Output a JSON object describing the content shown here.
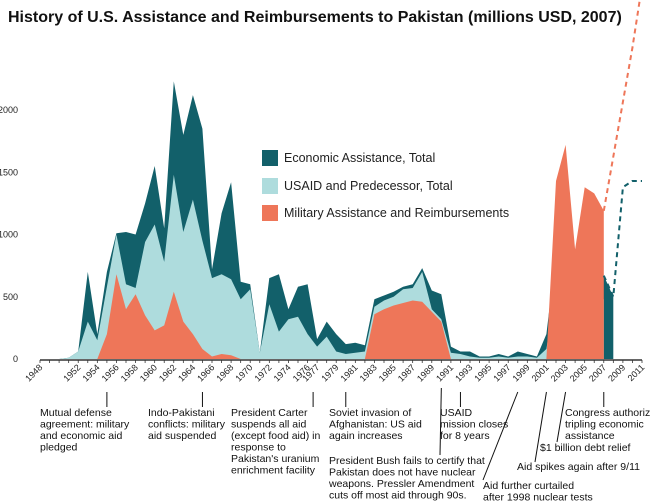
{
  "chart_data": {
    "type": "area",
    "title": "History of U.S. Assistance and Reimbursements to Pakistan (millions USD, 2007)",
    "xlabel": "",
    "ylabel": "",
    "xlim": [
      1948,
      2011
    ],
    "ylim": [
      0,
      2000
    ],
    "yticks": [
      "0",
      "500",
      "1000",
      "1500",
      "2000"
    ],
    "yticks_values": [
      0,
      500,
      1000,
      1500,
      2000
    ],
    "xtick_labels": [
      "1948",
      "1952",
      "1954",
      "1956",
      "1958",
      "1960",
      "1962",
      "1964",
      "1966",
      "1968",
      "1970",
      "1972",
      "1974",
      "1976",
      "1977",
      "1979",
      "1981",
      "1983",
      "1985",
      "1987",
      "1989",
      "1991",
      "1993",
      "1995",
      "1997",
      "1999",
      "2001",
      "2003",
      "2005",
      "2007",
      "2009",
      "2011"
    ],
    "legend_position": "center-right",
    "series": [
      {
        "name": "Economic Assistance, Total",
        "color": "#12606a",
        "x": [
          1948,
          1950,
          1951,
          1952,
          1953,
          1954,
          1955,
          1956,
          1957,
          1958,
          1959,
          1960,
          1961,
          1962,
          1963,
          1964,
          1965,
          1966,
          1967,
          1968,
          1969,
          1970,
          1971,
          1972,
          1973,
          1974,
          1975,
          1976,
          1977,
          1978,
          1979,
          1980,
          1981,
          1982,
          1983,
          1984,
          1985,
          1986,
          1987,
          1988,
          1989,
          1990,
          1991,
          1992,
          1993,
          1994,
          1995,
          1996,
          1997,
          1998,
          1999,
          2000,
          2001,
          2002,
          2003,
          2004,
          2005,
          2006,
          2007,
          2008
        ],
        "values": [
          0,
          0,
          10,
          60,
          700,
          200,
          700,
          1010,
          1020,
          1000,
          1250,
          1550,
          1050,
          2230,
          1800,
          2120,
          1850,
          720,
          1170,
          1420,
          620,
          600,
          50,
          650,
          680,
          400,
          580,
          600,
          160,
          300,
          200,
          120,
          130,
          110,
          480,
          510,
          540,
          580,
          600,
          730,
          550,
          520,
          100,
          60,
          60,
          20,
          20,
          40,
          20,
          60,
          40,
          20,
          200,
          850,
          320,
          360,
          420,
          660,
          670,
          500
        ]
      },
      {
        "name": "USAID and Predecessor, Total",
        "color": "#aedcdd",
        "x": [
          1948,
          1950,
          1951,
          1952,
          1953,
          1954,
          1955,
          1956,
          1957,
          1958,
          1959,
          1960,
          1961,
          1962,
          1963,
          1964,
          1965,
          1966,
          1967,
          1968,
          1969,
          1970,
          1971,
          1972,
          1973,
          1974,
          1975,
          1976,
          1977,
          1978,
          1979,
          1980,
          1981,
          1982,
          1983,
          1984,
          1985,
          1986,
          1987,
          1988,
          1989,
          1990,
          1991,
          1992,
          1993,
          1994,
          1995,
          1996,
          1997,
          1998,
          1999,
          2000,
          2001,
          2002,
          2003,
          2004,
          2005,
          2006,
          2007
        ],
        "values": [
          0,
          0,
          10,
          60,
          300,
          150,
          580,
          1000,
          600,
          570,
          940,
          1080,
          780,
          1480,
          1020,
          1280,
          950,
          650,
          680,
          640,
          480,
          560,
          50,
          440,
          220,
          320,
          340,
          200,
          100,
          180,
          60,
          40,
          50,
          60,
          420,
          470,
          500,
          560,
          570,
          700,
          400,
          320,
          50,
          40,
          20,
          10,
          10,
          20,
          10,
          20,
          20,
          10,
          80,
          580,
          290,
          310,
          380,
          460,
          480
        ]
      },
      {
        "name": "Military Assistance and Reimbursements",
        "color": "#ee7659",
        "x": [
          1948,
          1954,
          1955,
          1956,
          1957,
          1958,
          1959,
          1960,
          1961,
          1962,
          1963,
          1964,
          1965,
          1966,
          1967,
          1968,
          1969,
          1979,
          1982,
          1983,
          1984,
          1985,
          1986,
          1987,
          1988,
          1989,
          1990,
          1991,
          2000,
          2001,
          2002,
          2003,
          2004,
          2005,
          2006,
          2007
        ],
        "values": [
          0,
          0,
          200,
          680,
          400,
          520,
          350,
          230,
          270,
          540,
          300,
          200,
          80,
          20,
          40,
          30,
          0,
          0,
          0,
          360,
          400,
          430,
          450,
          470,
          460,
          380,
          300,
          0,
          0,
          0,
          1430,
          1720,
          880,
          1380,
          1330,
          1190
        ]
      }
    ],
    "projections": [
      {
        "name": "Economic Assistance projection",
        "x": [
          2007,
          2008,
          2009,
          2010,
          2011
        ],
        "values": [
          670,
          500,
          1380,
          1430,
          1430
        ],
        "color": "#12606a",
        "style": "dashed"
      },
      {
        "name": "Military Assistance projection",
        "x": [
          2007,
          2010,
          2011
        ],
        "values": [
          1190,
          2500,
          3000
        ],
        "color": "#ee7659",
        "style": "dashed"
      }
    ],
    "annotations": [
      {
        "year": 1955,
        "lines": [
          "Mutual defense",
          "agreement: military",
          "and economic aid",
          "pledged"
        ]
      },
      {
        "year": 1965,
        "lines": [
          "Indo-Pakistani",
          "conflicts: military",
          "aid suspended"
        ]
      },
      {
        "year": 1977,
        "lines": [
          "President Carter",
          "suspends all aid",
          "(except food aid) in",
          "response to",
          "Pakistan's uranium",
          "enrichment facility"
        ]
      },
      {
        "year": 1980,
        "lines": [
          "Soviet invasion of",
          "Afghanistan: US aid",
          "again  increases"
        ]
      },
      {
        "year": 1990,
        "lines": [
          "President Bush fails to certify that",
          "Pakistan does not have nuclear",
          "weapons.  Pressler Amendment",
          "cuts off most aid through 90s."
        ]
      },
      {
        "year": 1992,
        "lines": [
          "USAID",
          "mission closes",
          "for 8 years"
        ]
      },
      {
        "year": 1998,
        "lines": [
          "Aid further curtailed",
          "after 1998 nuclear tests"
        ]
      },
      {
        "year": 2001,
        "lines": [
          "Aid spikes again after 9/11"
        ]
      },
      {
        "year": 2003,
        "lines": [
          "$1 billion debt relief"
        ]
      },
      {
        "year": 2007,
        "lines": [
          "Congress authorizes",
          "tripling economic",
          "assistance"
        ]
      }
    ]
  }
}
